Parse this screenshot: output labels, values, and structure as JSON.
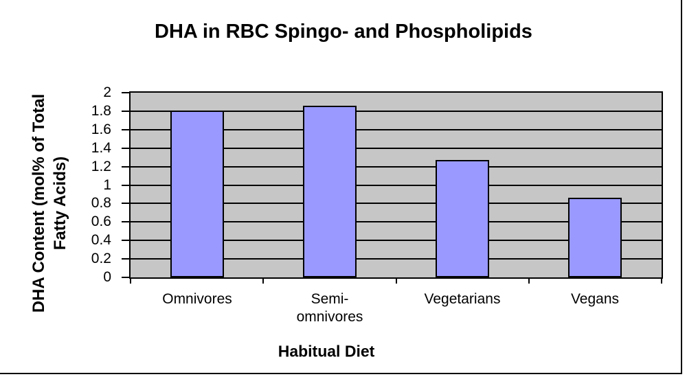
{
  "chart_data": {
    "type": "bar",
    "title": "DHA in RBC Spingo- and Phospholipids",
    "xlabel": "Habitual Diet",
    "ylabel": "DHA Content (mol% of Total\nFatty Acids)",
    "categories": [
      "Omnivores",
      "Semi-\nomnivores",
      "Vegetarians",
      "Vegans"
    ],
    "values": [
      1.81,
      1.86,
      1.27,
      0.86
    ],
    "ylim": [
      0,
      2
    ],
    "ytick_step": 0.2,
    "ytick_labels": [
      "2",
      "1.8",
      "1.6",
      "1.4",
      "1.2",
      "1",
      "0.8",
      "0.6",
      "0.4",
      "0.2",
      "0"
    ],
    "grid": true,
    "legend": "none",
    "colors": {
      "bar_fill": "#9999FF",
      "bar_border": "#000000",
      "plot_background": "#C6C6C6",
      "gridline": "#000000",
      "text": "#000000",
      "page_background": "#FFFFFF"
    }
  }
}
